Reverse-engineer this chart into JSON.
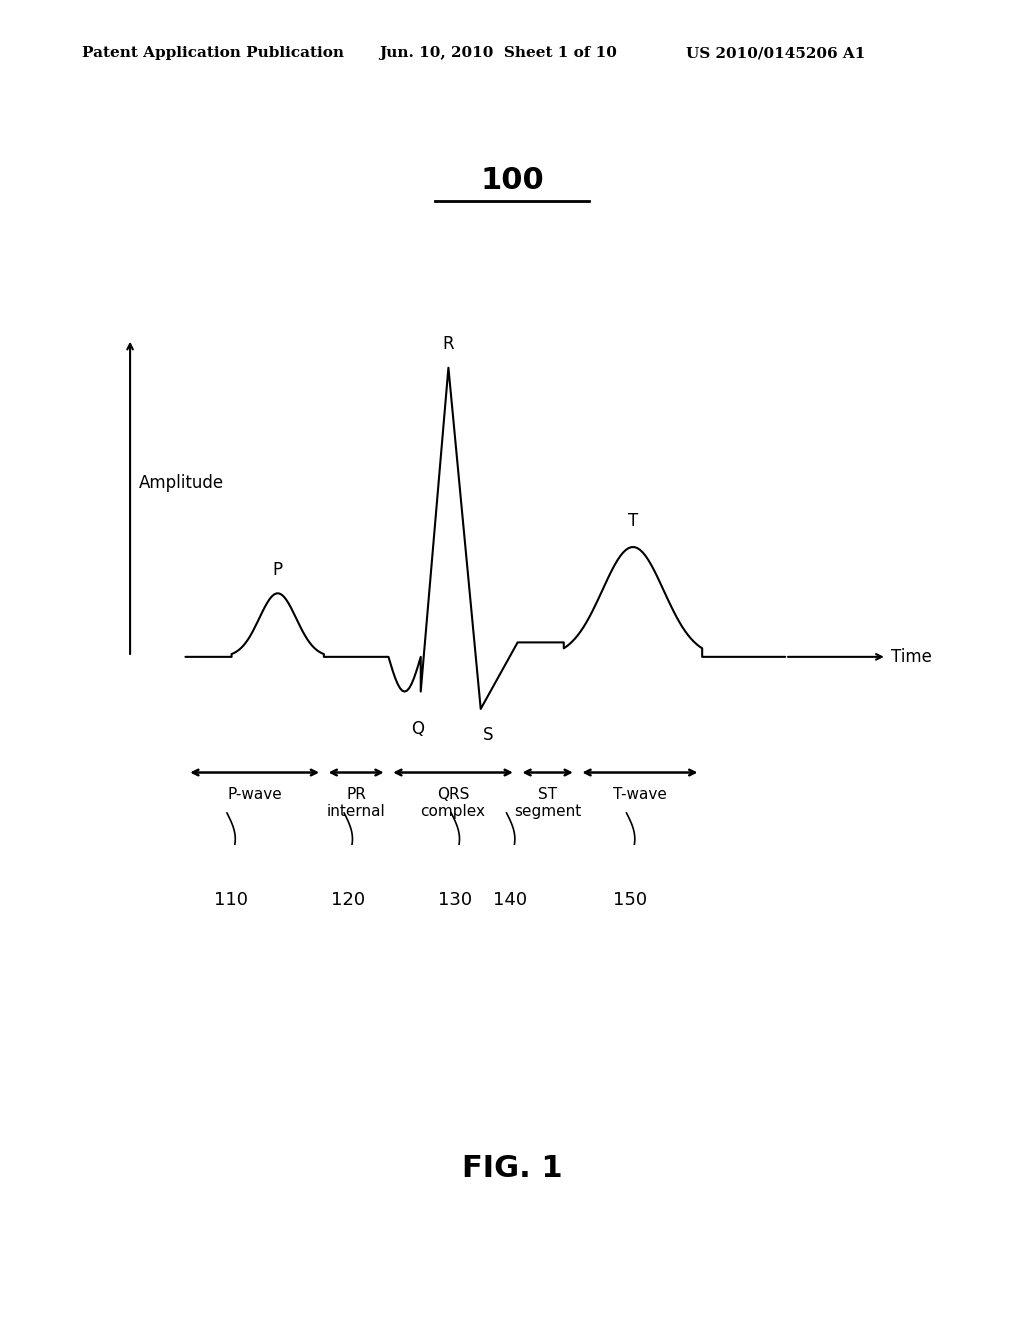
{
  "title": "100",
  "fig_label": "FIG. 1",
  "header_left": "Patent Application Publication",
  "header_mid": "Jun. 10, 2010  Sheet 1 of 10",
  "header_right": "US 2010/0145206 A1",
  "amplitude_label": "Amplitude",
  "time_label": "Time",
  "bg_color": "#ffffff",
  "text_color": "#000000",
  "ecg_color": "#000000",
  "segment_labels": [
    "P-wave",
    "PR\ninternal",
    "QRS\ncomplex",
    "ST\nsegment",
    "T-wave"
  ],
  "segment_ids": [
    "110",
    "120",
    "130",
    "140",
    "150"
  ],
  "wave_labels": [
    "P",
    "Q",
    "R",
    "S",
    "T"
  ],
  "title_fontsize": 22,
  "fig_label_fontsize": 22,
  "header_fontsize": 11,
  "annotation_fontsize": 12,
  "wave_label_fontsize": 12,
  "segment_label_fontsize": 11,
  "segment_id_fontsize": 13
}
